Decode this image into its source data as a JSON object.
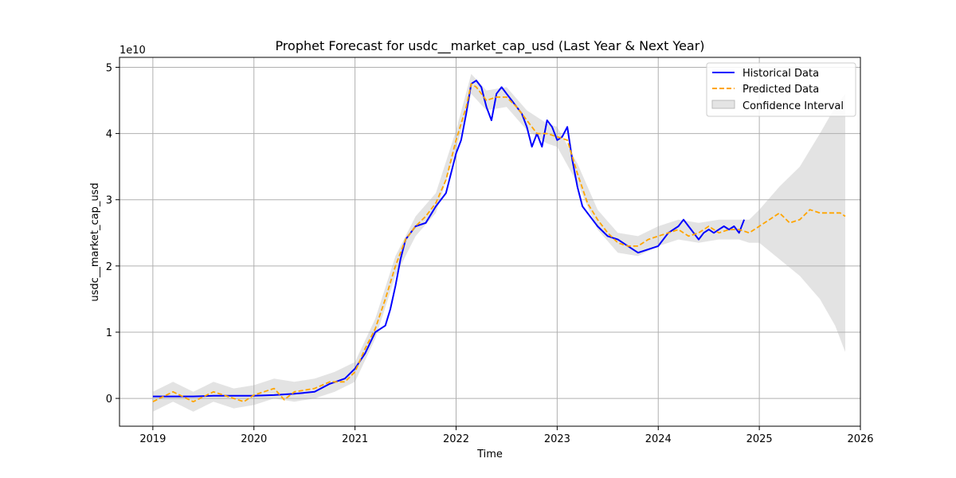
{
  "chart_data": {
    "type": "line",
    "title": "Prophet Forecast for usdc__market_cap_usd (Last Year & Next Year)",
    "xlabel": "Time",
    "ylabel": "usdc__market_cap_usd",
    "y_offset_label": "1e10",
    "y_scale_multiplier": 10000000000,
    "xlim": [
      2018.67,
      2026.0
    ],
    "ylim": [
      -0.42,
      5.15
    ],
    "x_ticks": [
      2019,
      2020,
      2021,
      2022,
      2023,
      2024,
      2025,
      2026
    ],
    "x_tick_labels": [
      "2019",
      "2020",
      "2021",
      "2022",
      "2023",
      "2024",
      "2025",
      "2026"
    ],
    "y_ticks": [
      0,
      1,
      2,
      3,
      4,
      5
    ],
    "y_tick_labels": [
      "0",
      "1",
      "2",
      "3",
      "4",
      "5"
    ],
    "grid": true,
    "legend_position": "top-right",
    "colors": {
      "historical": "#0000ff",
      "predicted": "#ffa500",
      "confidence": "#d9d9d9"
    },
    "series": [
      {
        "name": "Historical Data",
        "style": "solid",
        "x": [
          2019.0,
          2019.2,
          2019.4,
          2019.6,
          2019.8,
          2020.0,
          2020.2,
          2020.4,
          2020.6,
          2020.75,
          2020.9,
          2021.0,
          2021.1,
          2021.2,
          2021.3,
          2021.35,
          2021.4,
          2021.45,
          2021.5,
          2021.55,
          2021.6,
          2021.7,
          2021.8,
          2021.9,
          2022.0,
          2022.05,
          2022.1,
          2022.15,
          2022.2,
          2022.25,
          2022.3,
          2022.35,
          2022.4,
          2022.45,
          2022.5,
          2022.55,
          2022.6,
          2022.65,
          2022.7,
          2022.75,
          2022.8,
          2022.85,
          2022.9,
          2022.95,
          2023.0,
          2023.05,
          2023.1,
          2023.15,
          2023.2,
          2023.25,
          2023.3,
          2023.4,
          2023.5,
          2023.6,
          2023.7,
          2023.8,
          2023.9,
          2024.0,
          2024.1,
          2024.2,
          2024.25,
          2024.3,
          2024.35,
          2024.4,
          2024.45,
          2024.5,
          2024.55,
          2024.6,
          2024.65,
          2024.7,
          2024.75,
          2024.8,
          2024.85
        ],
        "values": [
          0.03,
          0.03,
          0.03,
          0.04,
          0.04,
          0.04,
          0.05,
          0.07,
          0.1,
          0.22,
          0.3,
          0.45,
          0.68,
          1.0,
          1.1,
          1.35,
          1.7,
          2.1,
          2.4,
          2.5,
          2.6,
          2.65,
          2.9,
          3.1,
          3.7,
          3.9,
          4.3,
          4.75,
          4.8,
          4.7,
          4.4,
          4.2,
          4.6,
          4.7,
          4.6,
          4.5,
          4.4,
          4.3,
          4.1,
          3.8,
          4.0,
          3.8,
          4.2,
          4.1,
          3.9,
          3.95,
          4.1,
          3.6,
          3.2,
          2.9,
          2.8,
          2.6,
          2.45,
          2.4,
          2.3,
          2.2,
          2.25,
          2.3,
          2.5,
          2.6,
          2.7,
          2.6,
          2.5,
          2.4,
          2.5,
          2.55,
          2.5,
          2.55,
          2.6,
          2.55,
          2.6,
          2.5,
          2.7
        ]
      },
      {
        "name": "Predicted Data",
        "style": "dashed",
        "x": [
          2019.0,
          2019.2,
          2019.4,
          2019.6,
          2019.8,
          2019.9,
          2020.0,
          2020.2,
          2020.3,
          2020.4,
          2020.6,
          2020.75,
          2020.9,
          2021.0,
          2021.1,
          2021.2,
          2021.3,
          2021.4,
          2021.5,
          2021.6,
          2021.7,
          2021.8,
          2021.9,
          2022.0,
          2022.1,
          2022.15,
          2022.2,
          2022.3,
          2022.4,
          2022.5,
          2022.6,
          2022.7,
          2022.8,
          2022.9,
          2023.0,
          2023.1,
          2023.2,
          2023.3,
          2023.4,
          2023.5,
          2023.6,
          2023.7,
          2023.8,
          2023.9,
          2024.0,
          2024.1,
          2024.2,
          2024.3,
          2024.4,
          2024.5,
          2024.6,
          2024.7,
          2024.8,
          2024.9,
          2025.0,
          2025.1,
          2025.2,
          2025.3,
          2025.4,
          2025.5,
          2025.6,
          2025.7,
          2025.8,
          2025.85
        ],
        "values": [
          -0.05,
          0.1,
          -0.05,
          0.1,
          0.0,
          -0.05,
          0.05,
          0.15,
          -0.02,
          0.1,
          0.15,
          0.25,
          0.25,
          0.4,
          0.75,
          1.05,
          1.5,
          2.0,
          2.4,
          2.6,
          2.75,
          2.95,
          3.3,
          3.9,
          4.4,
          4.75,
          4.7,
          4.5,
          4.55,
          4.55,
          4.4,
          4.2,
          4.0,
          4.0,
          3.95,
          3.9,
          3.4,
          2.95,
          2.7,
          2.5,
          2.35,
          2.3,
          2.3,
          2.4,
          2.45,
          2.5,
          2.55,
          2.45,
          2.5,
          2.6,
          2.5,
          2.55,
          2.55,
          2.5,
          2.6,
          2.7,
          2.8,
          2.65,
          2.7,
          2.85,
          2.8,
          2.8,
          2.8,
          2.75
        ]
      }
    ],
    "confidence_interval": {
      "name": "Confidence Interval",
      "x": [
        2019.0,
        2019.2,
        2019.4,
        2019.6,
        2019.8,
        2020.0,
        2020.2,
        2020.4,
        2020.6,
        2020.8,
        2021.0,
        2021.2,
        2021.4,
        2021.6,
        2021.8,
        2022.0,
        2022.15,
        2022.3,
        2022.5,
        2022.7,
        2022.9,
        2023.0,
        2023.2,
        2023.4,
        2023.6,
        2023.8,
        2024.0,
        2024.2,
        2024.4,
        2024.6,
        2024.8,
        2024.9,
        2025.0,
        2025.2,
        2025.4,
        2025.6,
        2025.75,
        2025.85
      ],
      "upper": [
        0.1,
        0.25,
        0.1,
        0.25,
        0.15,
        0.2,
        0.3,
        0.25,
        0.3,
        0.4,
        0.55,
        1.2,
        2.15,
        2.75,
        3.1,
        4.05,
        4.9,
        4.65,
        4.7,
        4.35,
        4.15,
        4.1,
        3.55,
        2.85,
        2.5,
        2.45,
        2.6,
        2.7,
        2.65,
        2.7,
        2.7,
        2.7,
        2.85,
        3.2,
        3.5,
        4.0,
        4.4,
        4.6
      ],
      "lower": [
        -0.2,
        -0.05,
        -0.2,
        -0.05,
        -0.15,
        -0.1,
        0.0,
        -0.05,
        0.0,
        0.1,
        0.25,
        0.9,
        1.85,
        2.45,
        2.8,
        3.75,
        4.6,
        4.35,
        4.4,
        4.05,
        3.85,
        3.8,
        3.25,
        2.55,
        2.2,
        2.15,
        2.3,
        2.4,
        2.35,
        2.4,
        2.4,
        2.35,
        2.35,
        2.1,
        1.85,
        1.5,
        1.1,
        0.7
      ]
    }
  }
}
